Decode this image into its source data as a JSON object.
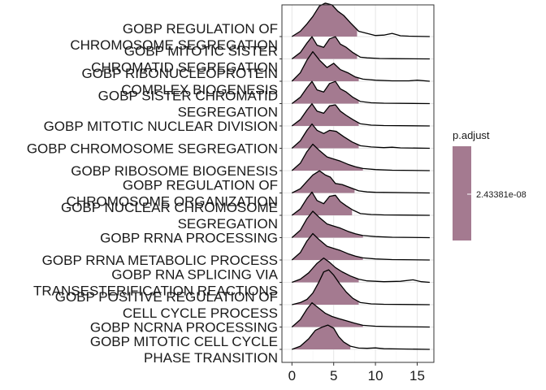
{
  "chart_data": {
    "type": "ridgeline",
    "title": "",
    "xlabel": "",
    "ylabel": "",
    "xlim": [
      -1.2,
      17
    ],
    "x_ticks": [
      0,
      5,
      10,
      15
    ],
    "grid": true,
    "legend": {
      "title": "p.adjust",
      "position": "right",
      "labels": [
        "2.43381e-08"
      ],
      "fill_color": "#A47A90"
    },
    "categories": [
      {
        "label": [
          "GOBP REGULATION OF",
          "CHROMOSOME SEGREGATION"
        ],
        "fill_end": 7.8,
        "curve": [
          [
            0,
            0
          ],
          [
            1,
            0.25
          ],
          [
            1.8,
            0.6
          ],
          [
            2.5,
            0.95
          ],
          [
            3.3,
            1.45
          ],
          [
            4,
            1.58
          ],
          [
            4.8,
            1.5
          ],
          [
            5.5,
            1.2
          ],
          [
            6.2,
            1.0
          ],
          [
            7,
            0.65
          ],
          [
            8,
            0.25
          ],
          [
            9,
            0.15
          ],
          [
            10,
            0.05
          ],
          [
            11,
            0.07
          ],
          [
            12,
            0.15
          ],
          [
            13,
            0.04
          ],
          [
            14,
            0.02
          ],
          [
            16.5,
            0
          ]
        ]
      },
      {
        "label": [
          "GOBP MITOTIC SISTER",
          "CHROMATID SEGREGATION"
        ],
        "fill_end": 7.8,
        "curve": [
          [
            0,
            0
          ],
          [
            1,
            0.3
          ],
          [
            1.8,
            0.75
          ],
          [
            2.4,
            1.05
          ],
          [
            3,
            0.65
          ],
          [
            3.8,
            0.55
          ],
          [
            4.5,
            0.95
          ],
          [
            5.2,
            1.05
          ],
          [
            5.8,
            0.7
          ],
          [
            6.5,
            0.55
          ],
          [
            7.3,
            0.3
          ],
          [
            8.2,
            0.08
          ],
          [
            9,
            0.05
          ],
          [
            10.5,
            0.02
          ],
          [
            12,
            0.01
          ],
          [
            16.5,
            0
          ]
        ]
      },
      {
        "label": [
          "GOBP RIBONUCLEOPROTEIN",
          "COMPLEX BIOGENESIS"
        ],
        "fill_end": 8.0,
        "curve": [
          [
            0,
            0
          ],
          [
            1,
            0.4
          ],
          [
            1.8,
            1.0
          ],
          [
            2.5,
            1.4
          ],
          [
            3.3,
            1.0
          ],
          [
            4.2,
            0.65
          ],
          [
            5,
            0.85
          ],
          [
            5.8,
            0.55
          ],
          [
            6.7,
            0.4
          ],
          [
            7.6,
            0.2
          ],
          [
            8.5,
            0.1
          ],
          [
            10,
            0.05
          ],
          [
            12,
            0.02
          ],
          [
            14,
            0.02
          ],
          [
            15,
            0.05
          ],
          [
            16.5,
            0
          ]
        ]
      },
      {
        "label": [
          "GOBP SISTER CHROMATID",
          "SEGREGATION"
        ],
        "fill_end": 8.0,
        "curve": [
          [
            0,
            0
          ],
          [
            1,
            0.3
          ],
          [
            1.8,
            0.75
          ],
          [
            2.4,
            1.05
          ],
          [
            3,
            0.65
          ],
          [
            3.8,
            0.55
          ],
          [
            4.5,
            0.95
          ],
          [
            5.2,
            1.05
          ],
          [
            5.8,
            0.7
          ],
          [
            6.5,
            0.55
          ],
          [
            7.3,
            0.3
          ],
          [
            8.2,
            0.1
          ],
          [
            9.5,
            0.04
          ],
          [
            11,
            0.02
          ],
          [
            16.5,
            0
          ]
        ]
      },
      {
        "label": [
          "GOBP MITOTIC NUCLEAR DIVISION"
        ],
        "fill_end": 8.0,
        "curve": [
          [
            0,
            0
          ],
          [
            1,
            0.3
          ],
          [
            1.8,
            0.75
          ],
          [
            2.4,
            1.05
          ],
          [
            3,
            0.7
          ],
          [
            3.8,
            0.6
          ],
          [
            4.5,
            0.95
          ],
          [
            5.2,
            1.0
          ],
          [
            5.8,
            0.7
          ],
          [
            6.5,
            0.5
          ],
          [
            7.3,
            0.3
          ],
          [
            8.2,
            0.1
          ],
          [
            9.5,
            0.04
          ],
          [
            11,
            0.02
          ],
          [
            16.5,
            0
          ]
        ]
      },
      {
        "label": [
          "GOBP CHROMOSOME SEGREGATION"
        ],
        "fill_end": 8.0,
        "curve": [
          [
            0,
            0
          ],
          [
            1,
            0.35
          ],
          [
            1.8,
            0.85
          ],
          [
            2.4,
            1.15
          ],
          [
            3,
            0.85
          ],
          [
            3.8,
            0.7
          ],
          [
            4.5,
            0.85
          ],
          [
            5.3,
            0.8
          ],
          [
            6.2,
            0.55
          ],
          [
            7.2,
            0.3
          ],
          [
            8.2,
            0.12
          ],
          [
            9.5,
            0.06
          ],
          [
            11,
            0.03
          ],
          [
            12,
            0.05
          ],
          [
            13,
            0.02
          ],
          [
            16.5,
            0
          ]
        ]
      },
      {
        "label": [
          "GOBP RIBOSOME BIOGENESIS"
        ],
        "fill_end": 8.5,
        "curve": [
          [
            0,
            0
          ],
          [
            1,
            0.35
          ],
          [
            1.8,
            0.9
          ],
          [
            2.5,
            1.25
          ],
          [
            3.3,
            0.95
          ],
          [
            4.2,
            0.65
          ],
          [
            5,
            0.55
          ],
          [
            5.8,
            0.45
          ],
          [
            6.7,
            0.3
          ],
          [
            7.6,
            0.18
          ],
          [
            8.5,
            0.1
          ],
          [
            10,
            0.05
          ],
          [
            12,
            0.02
          ],
          [
            16.5,
            0
          ]
        ]
      },
      {
        "label": [
          "GOBP REGULATION OF",
          "CHROMOSOME ORGANIZATION"
        ],
        "fill_end": 7.5,
        "curve": [
          [
            0,
            0
          ],
          [
            1,
            0.2
          ],
          [
            1.8,
            0.55
          ],
          [
            2.5,
            0.85
          ],
          [
            3.3,
            1.05
          ],
          [
            4,
            0.85
          ],
          [
            4.6,
            0.75
          ],
          [
            5.2,
            0.45
          ],
          [
            6,
            0.4
          ],
          [
            7,
            0.25
          ],
          [
            8,
            0.1
          ],
          [
            9,
            0.05
          ],
          [
            10,
            0.03
          ],
          [
            16.5,
            0
          ]
        ]
      },
      {
        "label": [
          "GOBP NUCLEAR CHROMOSOME",
          "SEGREGATION"
        ],
        "fill_end": 7.2,
        "curve": [
          [
            0,
            0
          ],
          [
            1,
            0.3
          ],
          [
            1.8,
            0.8
          ],
          [
            2.4,
            1.1
          ],
          [
            3,
            0.7
          ],
          [
            3.8,
            0.55
          ],
          [
            4.5,
            0.9
          ],
          [
            5.2,
            0.95
          ],
          [
            5.8,
            0.65
          ],
          [
            6.5,
            0.45
          ],
          [
            7.3,
            0.25
          ],
          [
            8.2,
            0.08
          ],
          [
            9.5,
            0.04
          ],
          [
            11,
            0.02
          ],
          [
            16.5,
            0
          ]
        ]
      },
      {
        "label": [
          "GOBP RRNA PROCESSING"
        ],
        "fill_end": 8.5,
        "curve": [
          [
            0,
            0
          ],
          [
            1,
            0.35
          ],
          [
            1.8,
            0.9
          ],
          [
            2.5,
            1.25
          ],
          [
            3.3,
            0.95
          ],
          [
            4.2,
            0.65
          ],
          [
            5,
            0.55
          ],
          [
            5.8,
            0.45
          ],
          [
            6.7,
            0.3
          ],
          [
            7.6,
            0.18
          ],
          [
            8.5,
            0.1
          ],
          [
            10,
            0.05
          ],
          [
            12,
            0.02
          ],
          [
            16.5,
            0
          ]
        ]
      },
      {
        "label": [
          "GOBP RRNA METABOLIC PROCESS"
        ],
        "fill_end": 8.5,
        "curve": [
          [
            0,
            0
          ],
          [
            1,
            0.35
          ],
          [
            1.8,
            0.9
          ],
          [
            2.5,
            1.25
          ],
          [
            3.3,
            0.95
          ],
          [
            4.2,
            0.65
          ],
          [
            5,
            0.55
          ],
          [
            5.8,
            0.45
          ],
          [
            6.7,
            0.3
          ],
          [
            7.6,
            0.18
          ],
          [
            8.5,
            0.1
          ],
          [
            10,
            0.05
          ],
          [
            12,
            0.02
          ],
          [
            16.5,
            0
          ]
        ]
      },
      {
        "label": [
          "GOBP RNA SPLICING VIA",
          "TRANSESTERIFICATION REACTIONS"
        ],
        "fill_end": 8.0,
        "curve": [
          [
            0,
            0
          ],
          [
            1,
            0.15
          ],
          [
            2,
            0.45
          ],
          [
            3,
            0.9
          ],
          [
            3.8,
            1.15
          ],
          [
            4.5,
            0.95
          ],
          [
            5.2,
            0.7
          ],
          [
            6,
            0.5
          ],
          [
            7,
            0.3
          ],
          [
            8,
            0.15
          ],
          [
            9,
            0.07
          ],
          [
            11,
            0.03
          ],
          [
            13,
            0.05
          ],
          [
            14.5,
            0.12
          ],
          [
            15.5,
            0.03
          ],
          [
            16.5,
            0
          ]
        ]
      },
      {
        "label": [
          "GOBP POSITIVE REGULATION OF",
          "CELL CYCLE PROCESS"
        ],
        "fill_end": 8.0,
        "curve": [
          [
            0,
            0
          ],
          [
            1,
            0.1
          ],
          [
            1.8,
            0.25
          ],
          [
            2.5,
            0.55
          ],
          [
            3.2,
            1.05
          ],
          [
            3.8,
            1.55
          ],
          [
            4.4,
            1.65
          ],
          [
            5,
            1.4
          ],
          [
            5.7,
            1.0
          ],
          [
            6.5,
            0.6
          ],
          [
            7.3,
            0.3
          ],
          [
            8.2,
            0.1
          ],
          [
            9.5,
            0.04
          ],
          [
            11,
            0.02
          ],
          [
            16.5,
            0
          ]
        ]
      },
      {
        "label": [
          "GOBP NCRNA PROCESSING"
        ],
        "fill_end": 8.5,
        "curve": [
          [
            0,
            0
          ],
          [
            1,
            0.35
          ],
          [
            1.8,
            0.85
          ],
          [
            2.4,
            1.15
          ],
          [
            3.2,
            0.9
          ],
          [
            4,
            0.65
          ],
          [
            4.8,
            0.5
          ],
          [
            5.6,
            0.4
          ],
          [
            6.5,
            0.3
          ],
          [
            7.5,
            0.18
          ],
          [
            8.5,
            0.08
          ],
          [
            10,
            0.04
          ],
          [
            12,
            0.02
          ],
          [
            16.5,
            0
          ]
        ]
      },
      {
        "label": [
          "GOBP MITOTIC CELL CYCLE",
          "PHASE TRANSITION"
        ],
        "fill_end": 7.0,
        "curve": [
          [
            0,
            0
          ],
          [
            1,
            0.15
          ],
          [
            2,
            0.5
          ],
          [
            2.8,
            0.9
          ],
          [
            3.6,
            1.05
          ],
          [
            4.3,
            1.15
          ],
          [
            5,
            1.0
          ],
          [
            5.6,
            0.6
          ],
          [
            6.2,
            0.35
          ],
          [
            7,
            0.15
          ],
          [
            8,
            0.06
          ],
          [
            9,
            0.05
          ],
          [
            10,
            0.07
          ],
          [
            11,
            0.03
          ],
          [
            13,
            0.02
          ],
          [
            16.5,
            0
          ]
        ]
      }
    ]
  }
}
